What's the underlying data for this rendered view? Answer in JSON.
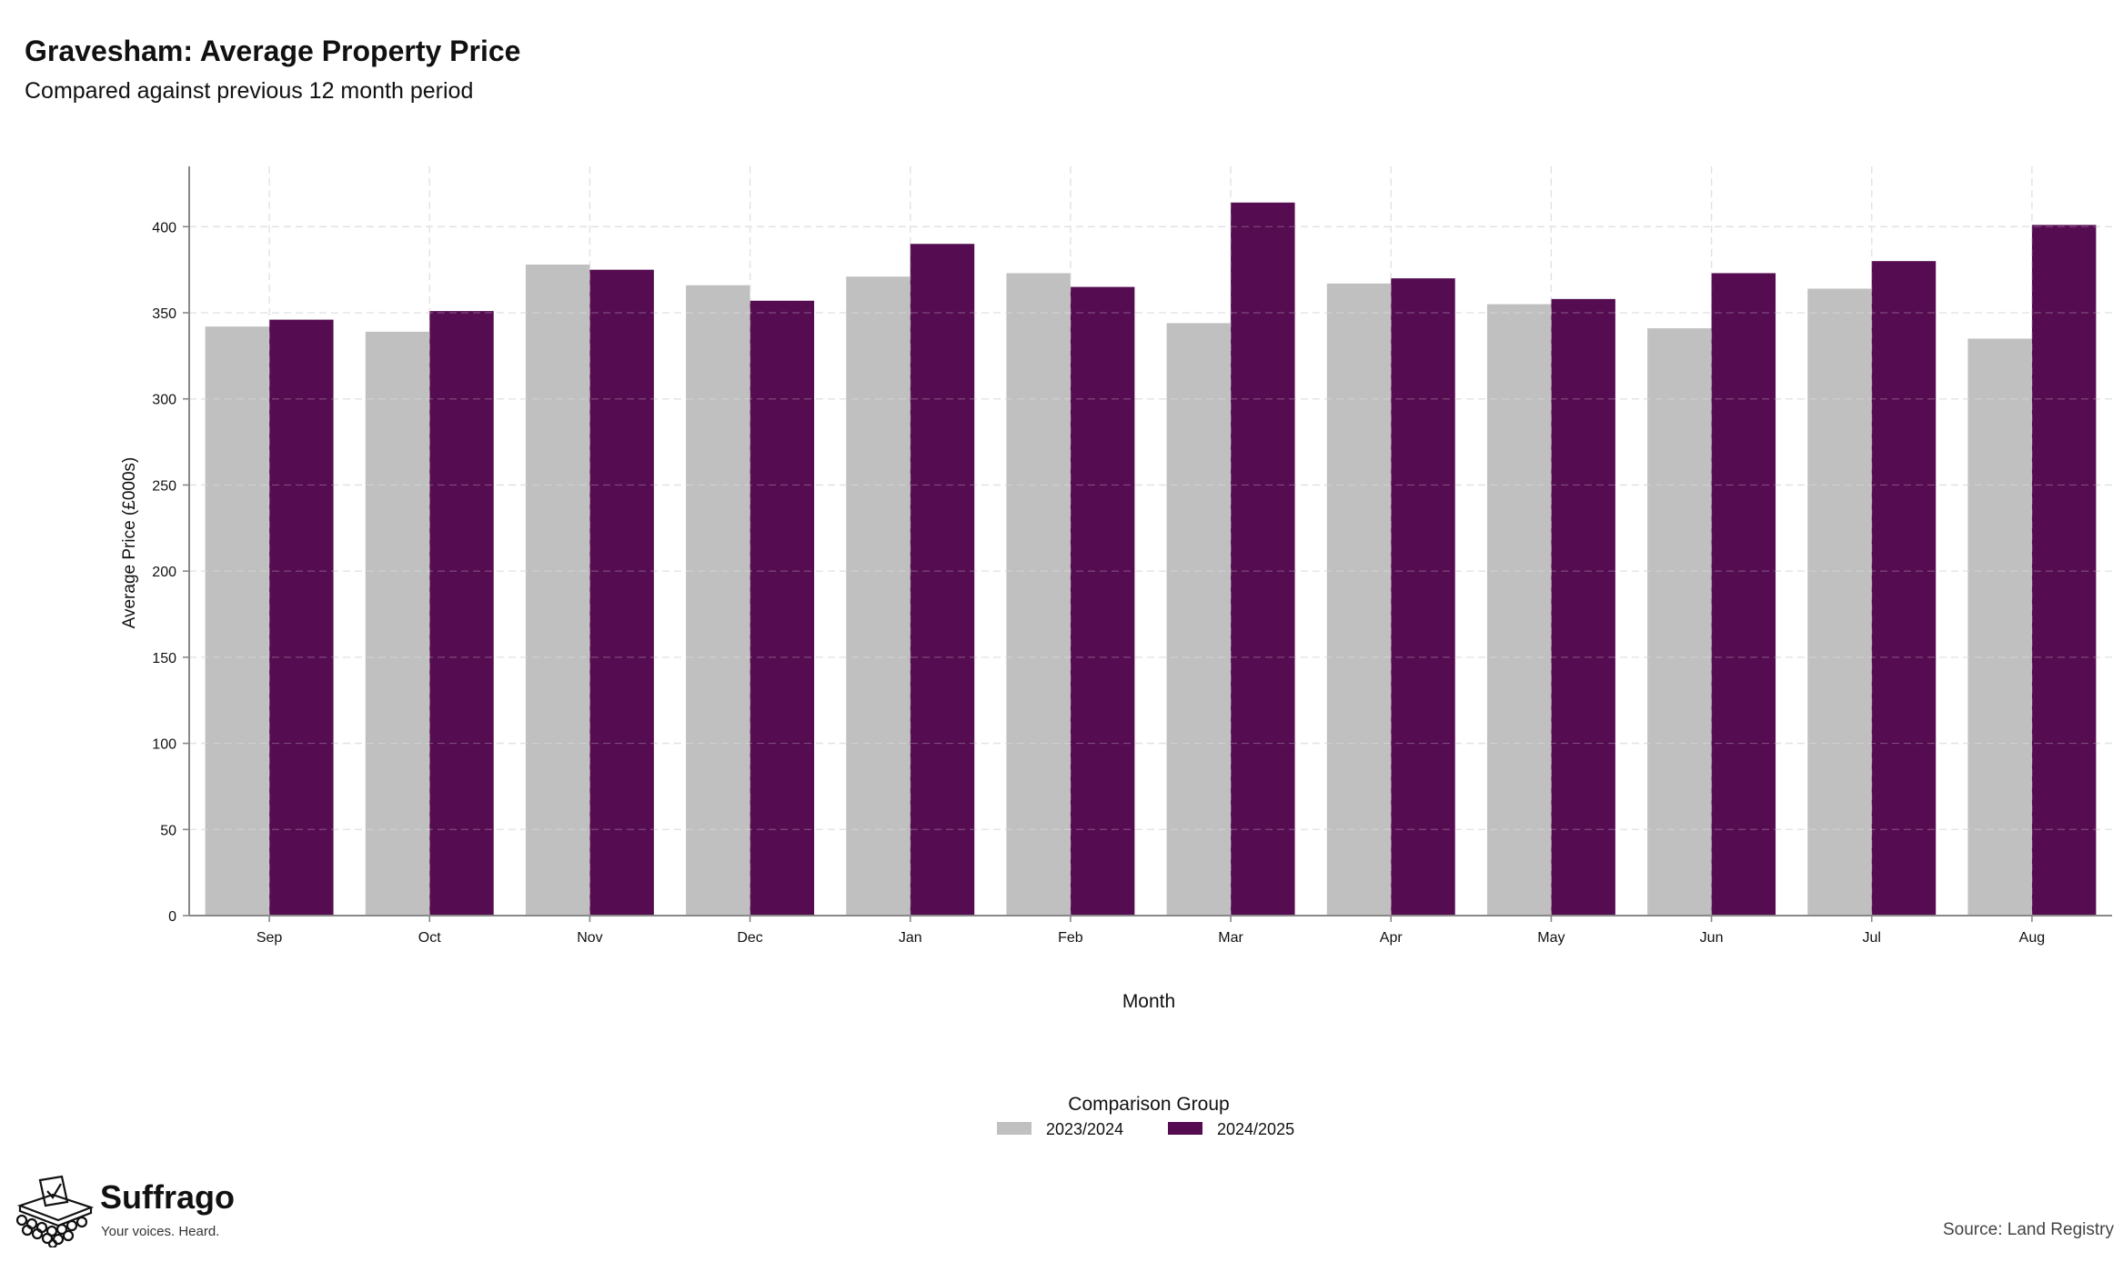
{
  "chart_data": {
    "type": "bar",
    "title": "Gravesham: Average Property Price",
    "subtitle": "Compared against previous 12 month period",
    "xlabel": "Month",
    "ylabel": "Average Price (£000s)",
    "categories": [
      "Sep",
      "Oct",
      "Nov",
      "Dec",
      "Jan",
      "Feb",
      "Mar",
      "Apr",
      "May",
      "Jun",
      "Jul",
      "Aug"
    ],
    "series": [
      {
        "name": "2023/2024",
        "color": "#c0c0c0",
        "values": [
          342,
          339,
          378,
          366,
          371,
          373,
          344,
          367,
          355,
          341,
          364,
          335
        ]
      },
      {
        "name": "2024/2025",
        "color": "#550c50",
        "values": [
          346,
          351,
          375,
          357,
          390,
          365,
          414,
          370,
          358,
          373,
          380,
          401
        ]
      }
    ],
    "ylim": [
      0,
      435
    ],
    "yticks": [
      0,
      50,
      100,
      150,
      200,
      250,
      300,
      350,
      400
    ],
    "grid": true,
    "legend_title": "Comparison Group",
    "legend_position": "bottom"
  },
  "source_text": "Source: Land Registry",
  "logo": {
    "name": "Suffrago",
    "tagline": "Your voices. Heard."
  }
}
